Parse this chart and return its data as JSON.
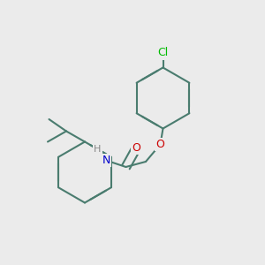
{
  "background_color": "#ebebeb",
  "bond_color": "#4a7c6f",
  "cl_color": "#00bb00",
  "o_color": "#cc0000",
  "n_color": "#0000cc",
  "h_color": "#888888",
  "lw": 1.5,
  "lw2": 1.5,
  "atoms": {
    "Cl": {
      "color": "#00bb00",
      "fontsize": 9
    },
    "O": {
      "color": "#cc0000",
      "fontsize": 9
    },
    "N": {
      "color": "#0000cc",
      "fontsize": 9
    },
    "H": {
      "color": "#888888",
      "fontsize": 8
    }
  },
  "figsize": [
    3.0,
    3.0
  ],
  "dpi": 100
}
